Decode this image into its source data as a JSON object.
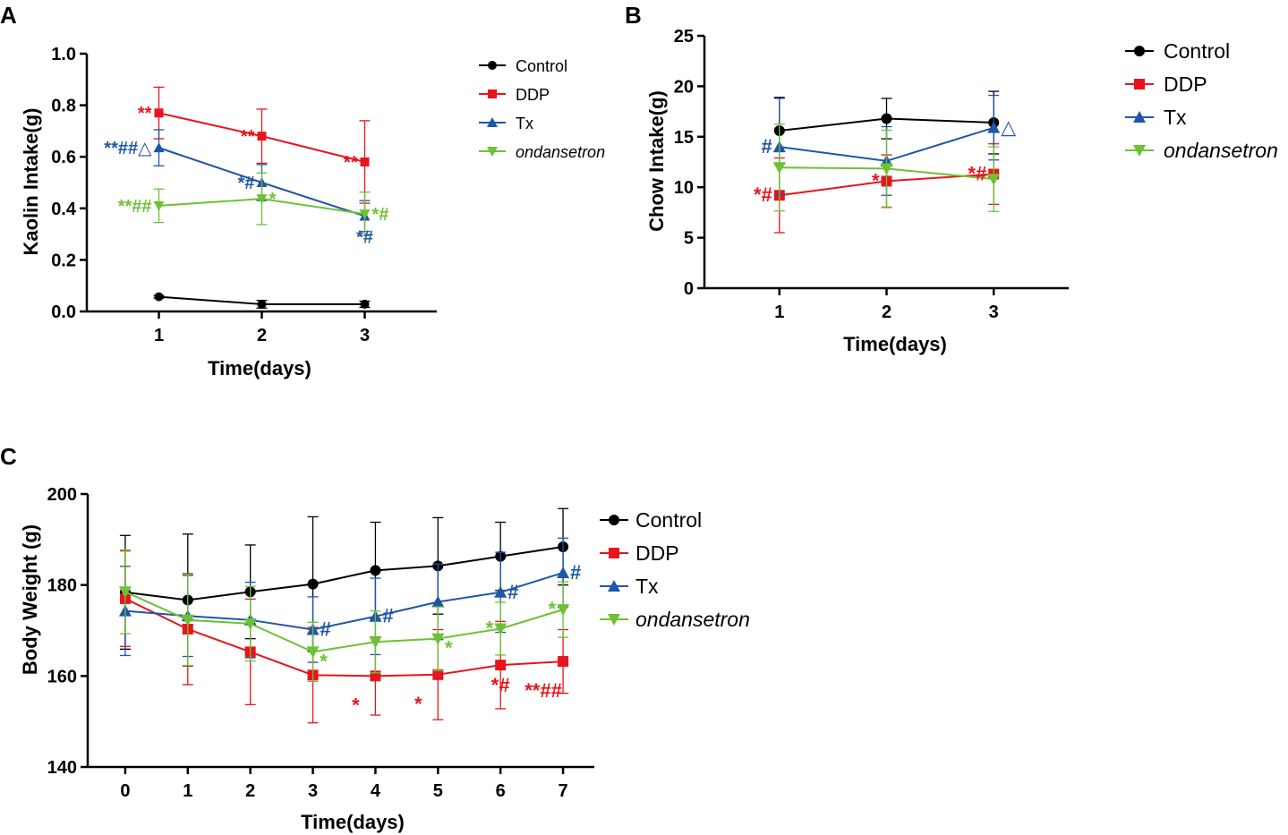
{
  "colors": {
    "Control": "#000000",
    "DDP": "#e8141c",
    "Tx": "#1f56a8",
    "ondansetron": "#6cc234"
  },
  "chart_data": [
    {
      "panel": "A",
      "type": "line",
      "xlabel": "Time(days)",
      "ylabel": "Kaolin Intake(g)",
      "x": [
        1,
        2,
        3
      ],
      "xticks": [
        "1",
        "2",
        "3"
      ],
      "xlim": [
        0.3,
        3.7
      ],
      "ylim": [
        0,
        1.0
      ],
      "yticks": [
        "0.0",
        "0.2",
        "0.4",
        "0.6",
        "0.8",
        "1.0"
      ],
      "series": [
        {
          "name": "Control",
          "marker": "circle",
          "values": [
            0.057,
            0.028,
            0.028
          ],
          "errors": [
            0.005,
            0.015,
            0.012
          ]
        },
        {
          "name": "DDP",
          "marker": "square",
          "values": [
            0.77,
            0.68,
            0.58
          ],
          "errors": [
            0.1,
            0.105,
            0.16
          ]
        },
        {
          "name": "Tx",
          "marker": "triangle-up",
          "values": [
            0.635,
            0.5,
            0.37
          ],
          "errors": [
            0.07,
            0.07,
            0.06
          ]
        },
        {
          "name": "ondansetron",
          "marker": "triangle-down",
          "italic": true,
          "values": [
            0.41,
            0.437,
            0.378
          ],
          "errors": [
            0.065,
            0.1,
            0.085
          ]
        }
      ],
      "annotations": [
        {
          "series": "DDP",
          "x": 1,
          "text": "**",
          "side": "left"
        },
        {
          "series": "DDP",
          "x": 2,
          "text": "**",
          "side": "left"
        },
        {
          "series": "DDP",
          "x": 3,
          "text": "**",
          "side": "left"
        },
        {
          "series": "Tx",
          "x": 1,
          "text": "**##△",
          "side": "left"
        },
        {
          "series": "Tx",
          "x": 2,
          "text": "*#",
          "side": "left"
        },
        {
          "series": "Tx",
          "x": 3,
          "text": "*#",
          "side": "below"
        },
        {
          "series": "ondansetron",
          "x": 1,
          "text": "**##",
          "side": "left"
        },
        {
          "series": "ondansetron",
          "x": 2,
          "text": "*",
          "side": "right"
        },
        {
          "series": "ondansetron",
          "x": 3,
          "text": "*#",
          "side": "right"
        }
      ]
    },
    {
      "panel": "B",
      "type": "line",
      "xlabel": "Time(days)",
      "ylabel": "Chow Intake(g)",
      "x": [
        1,
        2,
        3
      ],
      "xticks": [
        "1",
        "2",
        "3"
      ],
      "xlim": [
        0.3,
        3.7
      ],
      "ylim": [
        0,
        25
      ],
      "yticks": [
        "0",
        "5",
        "10",
        "15",
        "20",
        "25"
      ],
      "series": [
        {
          "name": "Control",
          "marker": "circle",
          "values": [
            15.6,
            16.8,
            16.4
          ],
          "errors": [
            3.3,
            2.0,
            3.1
          ]
        },
        {
          "name": "DDP",
          "marker": "square",
          "values": [
            9.2,
            10.6,
            11.3
          ],
          "errors": [
            3.7,
            2.6,
            3.0
          ]
        },
        {
          "name": "Tx",
          "marker": "triangle-up",
          "values": [
            14.0,
            12.6,
            15.9
          ],
          "errors": [
            4.8,
            3.4,
            3.2
          ]
        },
        {
          "name": "ondansetron",
          "marker": "triangle-down",
          "italic": true,
          "values": [
            11.95,
            11.85,
            10.8
          ],
          "errors": [
            4.3,
            3.8,
            3.2
          ]
        }
      ],
      "annotations": [
        {
          "series": "DDP",
          "x": 1,
          "text": "*#",
          "side": "left"
        },
        {
          "series": "DDP",
          "x": 2,
          "text": "*",
          "side": "left"
        },
        {
          "series": "DDP",
          "x": 3,
          "text": "*#",
          "side": "left"
        },
        {
          "series": "Tx",
          "x": 1,
          "text": "#",
          "side": "left"
        },
        {
          "series": "Tx",
          "x": 3,
          "text": "△",
          "side": "right"
        }
      ]
    },
    {
      "panel": "C",
      "type": "line",
      "xlabel": "Time(days)",
      "ylabel": "Body Weight (g)",
      "x": [
        0,
        1,
        2,
        3,
        4,
        5,
        6,
        7
      ],
      "xticks": [
        "0",
        "1",
        "2",
        "3",
        "4",
        "5",
        "6",
        "7"
      ],
      "xlim": [
        -0.6,
        7.5
      ],
      "ylim": [
        140,
        200
      ],
      "yticks": [
        "140",
        "160",
        "180",
        "200"
      ],
      "series": [
        {
          "name": "Control",
          "marker": "circle",
          "values": [
            178.4,
            176.7,
            178.5,
            180.2,
            183.2,
            184.2,
            186.3,
            188.4
          ],
          "errors": [
            12.5,
            14.5,
            10.3,
            14.8,
            10.6,
            10.6,
            7.5,
            8.4
          ]
        },
        {
          "name": "DDP",
          "marker": "square",
          "values": [
            177.0,
            170.3,
            165.3,
            160.2,
            160.0,
            160.3,
            162.4,
            163.2
          ],
          "errors": [
            10.5,
            12.2,
            11.6,
            10.5,
            8.6,
            9.9,
            9.6,
            7.0
          ]
        },
        {
          "name": "Tx",
          "marker": "triangle-up",
          "values": [
            174.3,
            173.2,
            172.3,
            170.2,
            173.1,
            176.3,
            178.4,
            182.7
          ],
          "errors": [
            9.8,
            8.9,
            8.3,
            7.2,
            8.4,
            8.3,
            8.8,
            7.6
          ]
        },
        {
          "name": "ondansetron",
          "marker": "triangle-down",
          "italic": true,
          "values": [
            178.5,
            172.3,
            171.5,
            165.3,
            167.5,
            168.2,
            170.4,
            174.6
          ],
          "errors": [
            9.2,
            10.0,
            8.2,
            6.5,
            6.8,
            7.0,
            5.8,
            6.1
          ]
        }
      ],
      "annotations": [
        {
          "series": "DDP",
          "x": 4,
          "text": "*",
          "side": "belowleft"
        },
        {
          "series": "DDP",
          "x": 5,
          "text": "*",
          "side": "belowleft"
        },
        {
          "series": "DDP",
          "x": 6,
          "text": "*#",
          "side": "below"
        },
        {
          "series": "DDP",
          "x": 7,
          "text": "**##",
          "side": "belowleft"
        },
        {
          "series": "Tx",
          "x": 3,
          "text": "#",
          "side": "right"
        },
        {
          "series": "Tx",
          "x": 4,
          "text": "#",
          "side": "right"
        },
        {
          "series": "Tx",
          "x": 6,
          "text": "#",
          "side": "right"
        },
        {
          "series": "Tx",
          "x": 7,
          "text": "#",
          "side": "right"
        },
        {
          "series": "ondansetron",
          "x": 3,
          "text": "*",
          "side": "belowright"
        },
        {
          "series": "ondansetron",
          "x": 5,
          "text": "*",
          "side": "belowright"
        },
        {
          "series": "ondansetron",
          "x": 6,
          "text": "*",
          "side": "left"
        },
        {
          "series": "ondansetron",
          "x": 7,
          "text": "*",
          "side": "left"
        }
      ]
    }
  ]
}
